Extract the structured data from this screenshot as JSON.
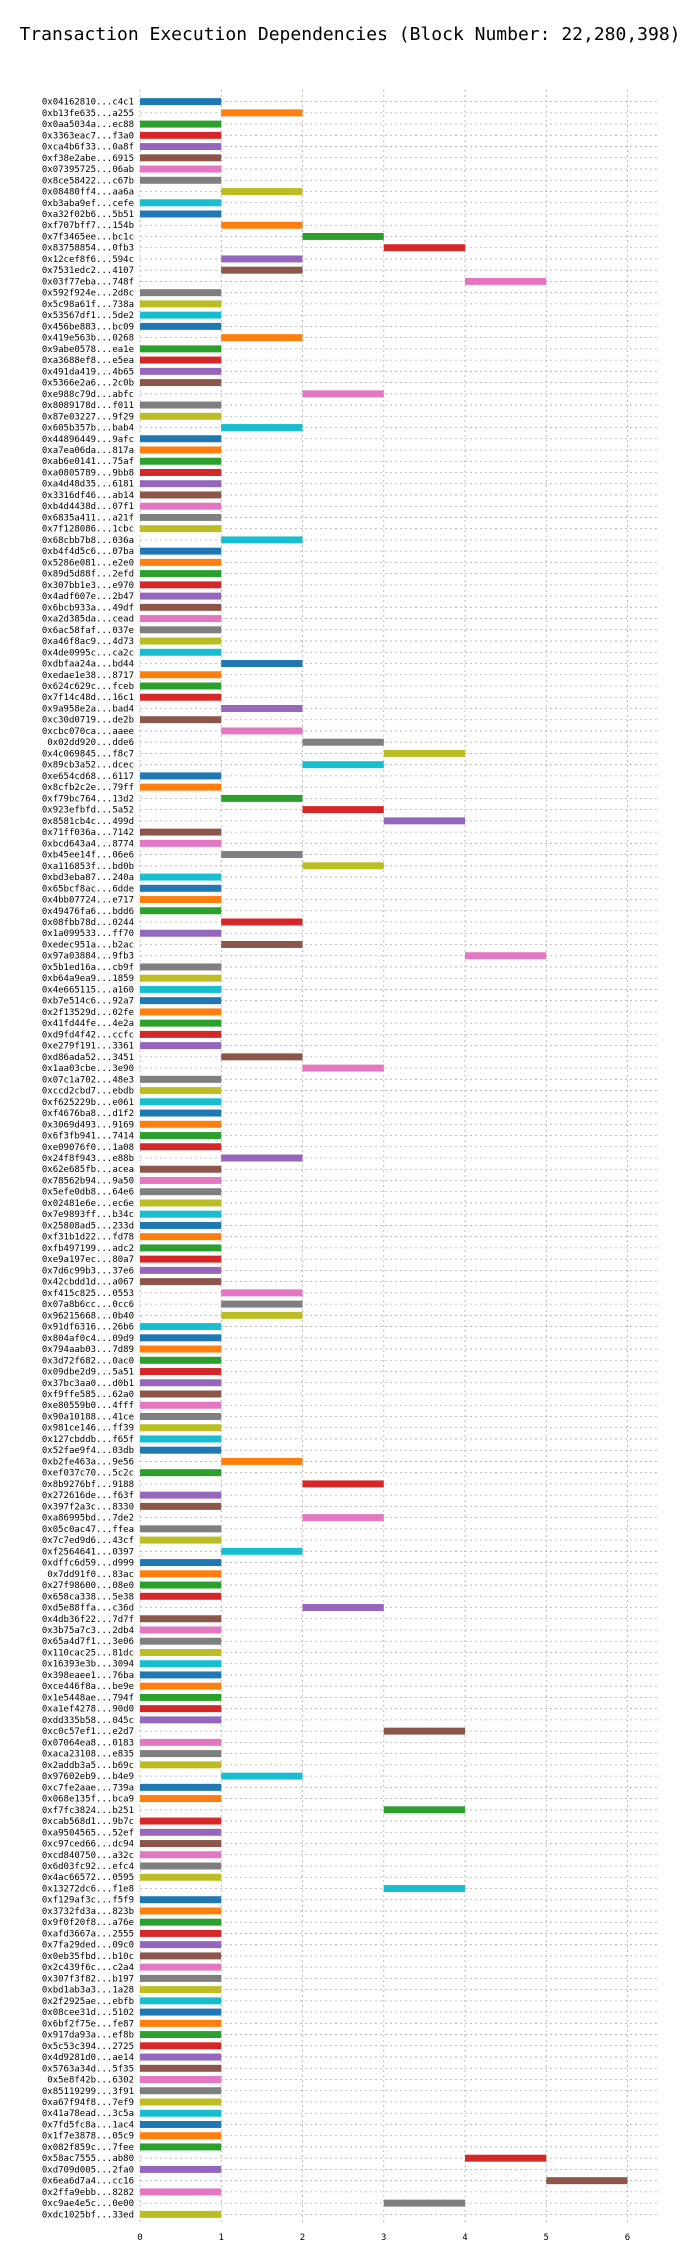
{
  "chart_data": {
    "type": "bar",
    "title": "Transaction Execution Dependencies (Block Number: 22,280,398)",
    "xlabel": "",
    "ylabel": "",
    "xlim": [
      0,
      6.4
    ],
    "xticks": [
      0,
      1,
      2,
      3,
      4,
      5,
      6
    ],
    "grid": true,
    "colors": [
      "#1f77b4",
      "#ff7f0e",
      "#2ca02c",
      "#d62728",
      "#9467bd",
      "#8c564b",
      "#e377c2",
      "#7f7f7f",
      "#bcbd22",
      "#17becf"
    ],
    "transactions": [
      {
        "label": "0x04162810...c4c1",
        "start": 0,
        "end": 1
      },
      {
        "label": "0xb13fe635...a255",
        "start": 1,
        "end": 2
      },
      {
        "label": "0x0aa5034a...ec88",
        "start": 0,
        "end": 1
      },
      {
        "label": "0x3363eac7...f3a0",
        "start": 0,
        "end": 1
      },
      {
        "label": "0xca4b6f33...0a8f",
        "start": 0,
        "end": 1
      },
      {
        "label": "0xf38e2abe...6915",
        "start": 0,
        "end": 1
      },
      {
        "label": "0x07395725...06ab",
        "start": 0,
        "end": 1
      },
      {
        "label": "0x8ce58422...c67b",
        "start": 0,
        "end": 1
      },
      {
        "label": "0x08480ff4...aa6a",
        "start": 1,
        "end": 2
      },
      {
        "label": "0xb3aba9ef...cefe",
        "start": 0,
        "end": 1
      },
      {
        "label": "0xa32f02b6...5b51",
        "start": 0,
        "end": 1
      },
      {
        "label": "0xf707bff7...154b",
        "start": 1,
        "end": 2
      },
      {
        "label": "0x7f3465ee...bc1c",
        "start": 2,
        "end": 3
      },
      {
        "label": "0x83758854...0fb3",
        "start": 3,
        "end": 4
      },
      {
        "label": "0x12cef8f6...594c",
        "start": 1,
        "end": 2
      },
      {
        "label": "0x7531edc2...4107",
        "start": 1,
        "end": 2
      },
      {
        "label": "0x03f77eba...748f",
        "start": 4,
        "end": 5
      },
      {
        "label": "0x592f924e...2d8c",
        "start": 0,
        "end": 1
      },
      {
        "label": "0x5c98a61f...738a",
        "start": 0,
        "end": 1
      },
      {
        "label": "0x53567df1...5de2",
        "start": 0,
        "end": 1
      },
      {
        "label": "0x456be883...bc09",
        "start": 0,
        "end": 1
      },
      {
        "label": "0x419e563b...0268",
        "start": 1,
        "end": 2
      },
      {
        "label": "0x9abe0578...ea1e",
        "start": 0,
        "end": 1
      },
      {
        "label": "0xa3688ef8...e5ea",
        "start": 0,
        "end": 1
      },
      {
        "label": "0x491da419...4b65",
        "start": 0,
        "end": 1
      },
      {
        "label": "0x5366e2a6...2c0b",
        "start": 0,
        "end": 1
      },
      {
        "label": "0xe988c79d...abfc",
        "start": 2,
        "end": 3
      },
      {
        "label": "0x8089178d...f011",
        "start": 0,
        "end": 1
      },
      {
        "label": "0x87e03227...9f29",
        "start": 0,
        "end": 1
      },
      {
        "label": "0x605b357b...bab4",
        "start": 1,
        "end": 2
      },
      {
        "label": "0x44896449...9afc",
        "start": 0,
        "end": 1
      },
      {
        "label": "0xa7ea06da...817a",
        "start": 0,
        "end": 1
      },
      {
        "label": "0xab6e0141...75af",
        "start": 0,
        "end": 1
      },
      {
        "label": "0xa0805789...9bb8",
        "start": 0,
        "end": 1
      },
      {
        "label": "0xa4d48d35...6181",
        "start": 0,
        "end": 1
      },
      {
        "label": "0x3316df46...ab14",
        "start": 0,
        "end": 1
      },
      {
        "label": "0xb4d4438d...07f1",
        "start": 0,
        "end": 1
      },
      {
        "label": "0x6835a411...a21f",
        "start": 0,
        "end": 1
      },
      {
        "label": "0x7f128086...1cbc",
        "start": 0,
        "end": 1
      },
      {
        "label": "0x68cbb7b8...036a",
        "start": 1,
        "end": 2
      },
      {
        "label": "0xb4f4d5c6...07ba",
        "start": 0,
        "end": 1
      },
      {
        "label": "0x5286e081...e2e0",
        "start": 0,
        "end": 1
      },
      {
        "label": "0x89d5d88f...2efd",
        "start": 0,
        "end": 1
      },
      {
        "label": "0x307bb1e3...e970",
        "start": 0,
        "end": 1
      },
      {
        "label": "0x4adf607e...2b47",
        "start": 0,
        "end": 1
      },
      {
        "label": "0x6bcb933a...49df",
        "start": 0,
        "end": 1
      },
      {
        "label": "0xa2d385da...cead",
        "start": 0,
        "end": 1
      },
      {
        "label": "0x6ac58faf...037e",
        "start": 0,
        "end": 1
      },
      {
        "label": "0xa46f8ac9...4d73",
        "start": 0,
        "end": 1
      },
      {
        "label": "0x4de0995c...ca2c",
        "start": 0,
        "end": 1
      },
      {
        "label": "0xdbfaa24a...bd44",
        "start": 1,
        "end": 2
      },
      {
        "label": "0xedae1e38...8717",
        "start": 0,
        "end": 1
      },
      {
        "label": "0x624c629c...fceb",
        "start": 0,
        "end": 1
      },
      {
        "label": "0x7f14c48d...16c1",
        "start": 0,
        "end": 1
      },
      {
        "label": "0x9a958e2a...bad4",
        "start": 1,
        "end": 2
      },
      {
        "label": "0xc30d0719...de2b",
        "start": 0,
        "end": 1
      },
      {
        "label": "0xcbc070ca...aaee",
        "start": 1,
        "end": 2
      },
      {
        "label": "0x02dd920...dde6",
        "start": 2,
        "end": 3
      },
      {
        "label": "0x4c069845...f8c7",
        "start": 3,
        "end": 4
      },
      {
        "label": "0x89cb3a52...dcec",
        "start": 2,
        "end": 3
      },
      {
        "label": "0xe654cd68...6117",
        "start": 0,
        "end": 1
      },
      {
        "label": "0x8cfb2c2e...79ff",
        "start": 0,
        "end": 1
      },
      {
        "label": "0xf79bc764...13d2",
        "start": 1,
        "end": 2
      },
      {
        "label": "0x923efbfd...5a52",
        "start": 2,
        "end": 3
      },
      {
        "label": "0x8581cb4c...499d",
        "start": 3,
        "end": 4
      },
      {
        "label": "0x71ff036a...7142",
        "start": 0,
        "end": 1
      },
      {
        "label": "0xbcd643a4...8774",
        "start": 0,
        "end": 1
      },
      {
        "label": "0xb45ee14f...06e6",
        "start": 1,
        "end": 2
      },
      {
        "label": "0xa116853f...bd0b",
        "start": 2,
        "end": 3
      },
      {
        "label": "0xbd3eba87...240a",
        "start": 0,
        "end": 1
      },
      {
        "label": "0x65bcf8ac...6dde",
        "start": 0,
        "end": 1
      },
      {
        "label": "0x4bb07724...e717",
        "start": 0,
        "end": 1
      },
      {
        "label": "0x49476fa6...bdd6",
        "start": 0,
        "end": 1
      },
      {
        "label": "0x08fbb78d...0244",
        "start": 1,
        "end": 2
      },
      {
        "label": "0x1a099533...ff70",
        "start": 0,
        "end": 1
      },
      {
        "label": "0xedec951a...b2ac",
        "start": 1,
        "end": 2
      },
      {
        "label": "0x97a03884...9fb3",
        "start": 4,
        "end": 5
      },
      {
        "label": "0x5b1ed16a...cb9f",
        "start": 0,
        "end": 1
      },
      {
        "label": "0xb64a9ea9...1859",
        "start": 0,
        "end": 1
      },
      {
        "label": "0x4e665115...a160",
        "start": 0,
        "end": 1
      },
      {
        "label": "0xb7e514c6...92a7",
        "start": 0,
        "end": 1
      },
      {
        "label": "0x2f13529d...02fe",
        "start": 0,
        "end": 1
      },
      {
        "label": "0x41fd44fe...4e2a",
        "start": 0,
        "end": 1
      },
      {
        "label": "0xd9fd4f42...ccfc",
        "start": 0,
        "end": 1
      },
      {
        "label": "0xe279f191...3361",
        "start": 0,
        "end": 1
      },
      {
        "label": "0xd86ada52...3451",
        "start": 1,
        "end": 2
      },
      {
        "label": "0x1aa03cbe...3e90",
        "start": 2,
        "end": 3
      },
      {
        "label": "0x07c1a702...48e3",
        "start": 0,
        "end": 1
      },
      {
        "label": "0xccd2cbd7...ebdb",
        "start": 0,
        "end": 1
      },
      {
        "label": "0xf625229b...e061",
        "start": 0,
        "end": 1
      },
      {
        "label": "0xf4676ba8...d1f2",
        "start": 0,
        "end": 1
      },
      {
        "label": "0x3069d493...9169",
        "start": 0,
        "end": 1
      },
      {
        "label": "0x6f3fb941...7414",
        "start": 0,
        "end": 1
      },
      {
        "label": "0xe09076f0...1a08",
        "start": 0,
        "end": 1
      },
      {
        "label": "0x24f8f943...e88b",
        "start": 1,
        "end": 2
      },
      {
        "label": "0x62e685fb...acea",
        "start": 0,
        "end": 1
      },
      {
        "label": "0x78562b94...9a50",
        "start": 0,
        "end": 1
      },
      {
        "label": "0x5efe0db8...64e6",
        "start": 0,
        "end": 1
      },
      {
        "label": "0x02481e6e...ec6e",
        "start": 0,
        "end": 1
      },
      {
        "label": "0x7e9893ff...b34c",
        "start": 0,
        "end": 1
      },
      {
        "label": "0x25808ad5...233d",
        "start": 0,
        "end": 1
      },
      {
        "label": "0xf31b1d22...fd78",
        "start": 0,
        "end": 1
      },
      {
        "label": "0xfb497199...adc2",
        "start": 0,
        "end": 1
      },
      {
        "label": "0xe9a197ec...80a7",
        "start": 0,
        "end": 1
      },
      {
        "label": "0x7d6c99b3...37e6",
        "start": 0,
        "end": 1
      },
      {
        "label": "0x42cbdd1d...a067",
        "start": 0,
        "end": 1
      },
      {
        "label": "0xf415c825...0553",
        "start": 1,
        "end": 2
      },
      {
        "label": "0x07a8b6cc...0cc6",
        "start": 1,
        "end": 2
      },
      {
        "label": "0x96215668...0b40",
        "start": 1,
        "end": 2
      },
      {
        "label": "0x91df6316...26b6",
        "start": 0,
        "end": 1
      },
      {
        "label": "0x804af0c4...09d9",
        "start": 0,
        "end": 1
      },
      {
        "label": "0x794aab03...7d89",
        "start": 0,
        "end": 1
      },
      {
        "label": "0x3d72f682...0ac0",
        "start": 0,
        "end": 1
      },
      {
        "label": "0x09dbe2d9...5a51",
        "start": 0,
        "end": 1
      },
      {
        "label": "0x37bc3aa0...d0b1",
        "start": 0,
        "end": 1
      },
      {
        "label": "0xf9ffe585...62a0",
        "start": 0,
        "end": 1
      },
      {
        "label": "0xe80559b0...4fff",
        "start": 0,
        "end": 1
      },
      {
        "label": "0x90a10188...41ce",
        "start": 0,
        "end": 1
      },
      {
        "label": "0x981ce146...ff39",
        "start": 0,
        "end": 1
      },
      {
        "label": "0x127cbddb...f65f",
        "start": 0,
        "end": 1
      },
      {
        "label": "0x52fae9f4...03db",
        "start": 0,
        "end": 1
      },
      {
        "label": "0xb2fe463a...9e56",
        "start": 1,
        "end": 2
      },
      {
        "label": "0xef037c70...5c2c",
        "start": 0,
        "end": 1
      },
      {
        "label": "0x8b9276bf...9188",
        "start": 2,
        "end": 3
      },
      {
        "label": "0x272616de...f63f",
        "start": 0,
        "end": 1
      },
      {
        "label": "0x397f2a3c...8330",
        "start": 0,
        "end": 1
      },
      {
        "label": "0xa86995bd...7de2",
        "start": 2,
        "end": 3
      },
      {
        "label": "0x05c0ac47...ffea",
        "start": 0,
        "end": 1
      },
      {
        "label": "0x7c7ed9d6...43cf",
        "start": 0,
        "end": 1
      },
      {
        "label": "0xf2564641...0397",
        "start": 1,
        "end": 2
      },
      {
        "label": "0xdffc6d59...d999",
        "start": 0,
        "end": 1
      },
      {
        "label": "0x7dd91f0...83ac",
        "start": 0,
        "end": 1
      },
      {
        "label": "0x27f98600...08e0",
        "start": 0,
        "end": 1
      },
      {
        "label": "0x658ca338...5e38",
        "start": 0,
        "end": 1
      },
      {
        "label": "0xd5e88ffa...c36d",
        "start": 2,
        "end": 3
      },
      {
        "label": "0x4db36f22...7d7f",
        "start": 0,
        "end": 1
      },
      {
        "label": "0x3b75a7c3...2db4",
        "start": 0,
        "end": 1
      },
      {
        "label": "0x65a4d7f1...3e06",
        "start": 0,
        "end": 1
      },
      {
        "label": "0x110cac25...81dc",
        "start": 0,
        "end": 1
      },
      {
        "label": "0x16393e3b...3094",
        "start": 0,
        "end": 1
      },
      {
        "label": "0x398eaee1...76ba",
        "start": 0,
        "end": 1
      },
      {
        "label": "0xce446f8a...be9e",
        "start": 0,
        "end": 1
      },
      {
        "label": "0x1e5448ae...794f",
        "start": 0,
        "end": 1
      },
      {
        "label": "0xa1ef4278...90d0",
        "start": 0,
        "end": 1
      },
      {
        "label": "0xdd335b58...045c",
        "start": 0,
        "end": 1
      },
      {
        "label": "0xc0c57ef1...e2d7",
        "start": 3,
        "end": 4
      },
      {
        "label": "0x07064ea8...0183",
        "start": 0,
        "end": 1
      },
      {
        "label": "0xaca23108...e835",
        "start": 0,
        "end": 1
      },
      {
        "label": "0x2addb3a5...b69c",
        "start": 0,
        "end": 1
      },
      {
        "label": "0x97602eb9...b4e9",
        "start": 1,
        "end": 2
      },
      {
        "label": "0xc7fe2aae...739a",
        "start": 0,
        "end": 1
      },
      {
        "label": "0x068e135f...bca9",
        "start": 0,
        "end": 1
      },
      {
        "label": "0xf7fc3824...b251",
        "start": 3,
        "end": 4
      },
      {
        "label": "0xcab568d1...9b7c",
        "start": 0,
        "end": 1
      },
      {
        "label": "0xa9504565...52ef",
        "start": 0,
        "end": 1
      },
      {
        "label": "0xc97ced66...dc94",
        "start": 0,
        "end": 1
      },
      {
        "label": "0xcd840750...a32c",
        "start": 0,
        "end": 1
      },
      {
        "label": "0x6d03fc92...efc4",
        "start": 0,
        "end": 1
      },
      {
        "label": "0x4ac66572...0595",
        "start": 0,
        "end": 1
      },
      {
        "label": "0x13272dc6...f1e8",
        "start": 3,
        "end": 4
      },
      {
        "label": "0xf129af3c...f5f9",
        "start": 0,
        "end": 1
      },
      {
        "label": "0x3732fd3a...823b",
        "start": 0,
        "end": 1
      },
      {
        "label": "0x9f0f20f8...a76e",
        "start": 0,
        "end": 1
      },
      {
        "label": "0xafd3667a...2555",
        "start": 0,
        "end": 1
      },
      {
        "label": "0x7fa29ded...09c0",
        "start": 0,
        "end": 1
      },
      {
        "label": "0x0eb35fbd...b10c",
        "start": 0,
        "end": 1
      },
      {
        "label": "0x2c439f6c...c2a4",
        "start": 0,
        "end": 1
      },
      {
        "label": "0x307f3f82...b197",
        "start": 0,
        "end": 1
      },
      {
        "label": "0xbd1ab3a3...1a28",
        "start": 0,
        "end": 1
      },
      {
        "label": "0x2f2925ae...ebfb",
        "start": 0,
        "end": 1
      },
      {
        "label": "0x08cee31d...5102",
        "start": 0,
        "end": 1
      },
      {
        "label": "0x6bf2f75e...fe87",
        "start": 0,
        "end": 1
      },
      {
        "label": "0x917da93a...ef8b",
        "start": 0,
        "end": 1
      },
      {
        "label": "0x5c53c394...2725",
        "start": 0,
        "end": 1
      },
      {
        "label": "0x4d9281d0...ae14",
        "start": 0,
        "end": 1
      },
      {
        "label": "0x5763a34d...5f35",
        "start": 0,
        "end": 1
      },
      {
        "label": "0x5e8f42b...6302",
        "start": 0,
        "end": 1
      },
      {
        "label": "0x85119299...3f91",
        "start": 0,
        "end": 1
      },
      {
        "label": "0xa67f94f8...7ef9",
        "start": 0,
        "end": 1
      },
      {
        "label": "0x41a78ead...3c5a",
        "start": 0,
        "end": 1
      },
      {
        "label": "0x7fd5fc8a...1ac4",
        "start": 0,
        "end": 1
      },
      {
        "label": "0x1f7e3878...05c9",
        "start": 0,
        "end": 1
      },
      {
        "label": "0x082f859c...7fee",
        "start": 0,
        "end": 1
      },
      {
        "label": "0x58ac7555...ab80",
        "start": 4,
        "end": 5
      },
      {
        "label": "0xd709d005...2fa0",
        "start": 0,
        "end": 1
      },
      {
        "label": "0x6ea6d7a4...cc16",
        "start": 5,
        "end": 6
      },
      {
        "label": "0x2ffa9ebb...8282",
        "start": 0,
        "end": 1
      },
      {
        "label": "0xc9ae4e5c...0e00",
        "start": 3,
        "end": 4
      },
      {
        "label": "0xdc1025bf...33ed",
        "start": 0,
        "end": 1
      }
    ]
  }
}
